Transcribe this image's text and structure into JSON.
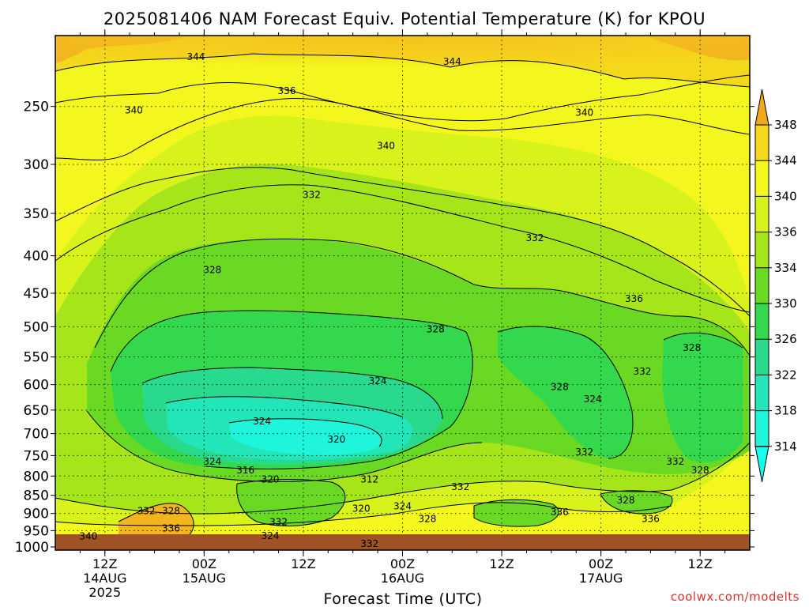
{
  "chart_data": {
    "type": "heatmap",
    "title": "2025081406 NAM Forecast Equiv. Potential Temperature (K) for KPOU",
    "xlabel": "Forecast Time (UTC)",
    "ylabel": "",
    "x_ticks": [
      {
        "label": "12Z",
        "date": "14AUG",
        "year": "2025",
        "hours": 6
      },
      {
        "label": "00Z",
        "date": "15AUG",
        "year": "",
        "hours": 18
      },
      {
        "label": "12Z",
        "date": "",
        "year": "",
        "hours": 30
      },
      {
        "label": "00Z",
        "date": "16AUG",
        "year": "",
        "hours": 42
      },
      {
        "label": "12Z",
        "date": "",
        "year": "",
        "hours": 54
      },
      {
        "label": "00Z",
        "date": "17AUG",
        "year": "",
        "hours": 66
      },
      {
        "label": "12Z",
        "date": "",
        "year": "",
        "hours": 78
      }
    ],
    "x_range_hours": [
      0,
      84
    ],
    "y_ticks": [
      "250",
      "300",
      "350",
      "400",
      "450",
      "500",
      "550",
      "600",
      "650",
      "700",
      "750",
      "800",
      "850",
      "900",
      "950",
      "1000"
    ],
    "y_range_hpa": [
      200,
      1010
    ],
    "y_scale": "log",
    "ground_hpa": 1000,
    "colorbar": {
      "labels": [
        "348",
        "344",
        "340",
        "336",
        "334",
        "330",
        "326",
        "322",
        "318",
        "314"
      ],
      "colors": [
        "#f2a81d",
        "#f4d81c",
        "#f4f71e",
        "#d8f21c",
        "#a6e51a",
        "#6ad923",
        "#33d84c",
        "#29d98e",
        "#22e6b8",
        "#1ff5da",
        "#16ffea"
      ]
    },
    "contour_labels": [
      {
        "value": "344",
        "hours": 17,
        "hpa": 214
      },
      {
        "value": "344",
        "hours": 48,
        "hpa": 217
      },
      {
        "value": "340",
        "hours": 9.5,
        "hpa": 253
      },
      {
        "value": "336",
        "hours": 28,
        "hpa": 238
      },
      {
        "value": "340",
        "hours": 40,
        "hpa": 283
      },
      {
        "value": "340",
        "hours": 64,
        "hpa": 255
      },
      {
        "value": "332",
        "hours": 31,
        "hpa": 330
      },
      {
        "value": "332",
        "hours": 58,
        "hpa": 378
      },
      {
        "value": "328",
        "hours": 19,
        "hpa": 418
      },
      {
        "value": "336",
        "hours": 70,
        "hpa": 458
      },
      {
        "value": "328",
        "hours": 46,
        "hpa": 504
      },
      {
        "value": "328",
        "hours": 77,
        "hpa": 534
      },
      {
        "value": "332",
        "hours": 71,
        "hpa": 576
      },
      {
        "value": "324",
        "hours": 39,
        "hpa": 593
      },
      {
        "value": "328",
        "hours": 61,
        "hpa": 604
      },
      {
        "value": "324",
        "hours": 65,
        "hpa": 628
      },
      {
        "value": "324",
        "hours": 25,
        "hpa": 673
      },
      {
        "value": "320",
        "hours": 34,
        "hpa": 713
      },
      {
        "value": "332",
        "hours": 64,
        "hpa": 742
      },
      {
        "value": "324",
        "hours": 19,
        "hpa": 764
      },
      {
        "value": "332",
        "hours": 75,
        "hpa": 764
      },
      {
        "value": "316",
        "hours": 23,
        "hpa": 786
      },
      {
        "value": "328",
        "hours": 78,
        "hpa": 786
      },
      {
        "value": "320",
        "hours": 26,
        "hpa": 808
      },
      {
        "value": "312",
        "hours": 38,
        "hpa": 808
      },
      {
        "value": "332",
        "hours": 49,
        "hpa": 828
      },
      {
        "value": "328",
        "hours": 69,
        "hpa": 863
      },
      {
        "value": "324",
        "hours": 42,
        "hpa": 880
      },
      {
        "value": "320",
        "hours": 37,
        "hpa": 886
      },
      {
        "value": "332",
        "hours": 11,
        "hpa": 893
      },
      {
        "value": "328",
        "hours": 14,
        "hpa": 893
      },
      {
        "value": "336",
        "hours": 61,
        "hpa": 896
      },
      {
        "value": "328",
        "hours": 45,
        "hpa": 915
      },
      {
        "value": "336",
        "hours": 72,
        "hpa": 915
      },
      {
        "value": "332",
        "hours": 27,
        "hpa": 925
      },
      {
        "value": "336",
        "hours": 14,
        "hpa": 943
      },
      {
        "value": "324",
        "hours": 26,
        "hpa": 966
      },
      {
        "value": "340",
        "hours": 4,
        "hpa": 967
      },
      {
        "value": "332",
        "hours": 38,
        "hpa": 990
      }
    ]
  },
  "credit": "coolwx.com/modelts"
}
